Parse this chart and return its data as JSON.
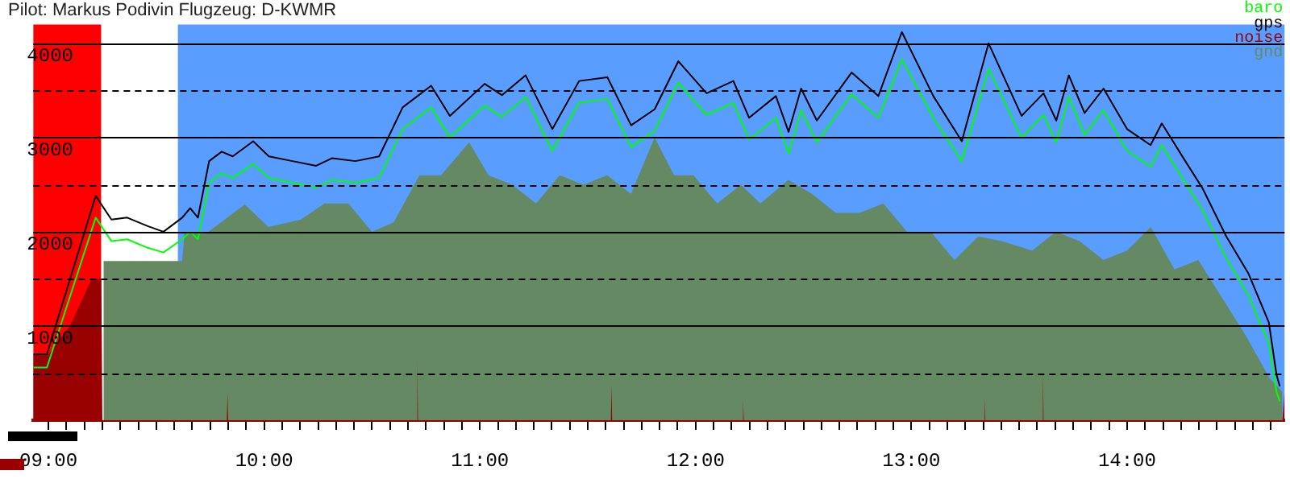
{
  "chart_data": {
    "type": "line",
    "title": "Pilot: Markus Podivin Flugzeug: D-KWMR",
    "xlim": [
      8.93,
      14.73
    ],
    "ylim": [
      0,
      4200
    ],
    "xticks": [
      {
        "value": 9,
        "label": "09:00"
      },
      {
        "value": 9.0833,
        "label": null
      },
      {
        "value": 9.1667,
        "label": null
      },
      {
        "value": 9.25,
        "label": null
      },
      {
        "value": 9.3333,
        "label": null
      },
      {
        "value": 9.4167,
        "label": null
      },
      {
        "value": 9.5,
        "label": null
      },
      {
        "value": 9.5833,
        "label": null
      },
      {
        "value": 9.6667,
        "label": null
      },
      {
        "value": 9.75,
        "label": null
      },
      {
        "value": 9.8333,
        "label": null
      },
      {
        "value": 9.9167,
        "label": null
      },
      {
        "value": 10,
        "label": "10:00"
      },
      {
        "value": 10.0833,
        "label": null
      },
      {
        "value": 10.1667,
        "label": null
      },
      {
        "value": 10.25,
        "label": null
      },
      {
        "value": 10.3333,
        "label": null
      },
      {
        "value": 10.4167,
        "label": null
      },
      {
        "value": 10.5,
        "label": null
      },
      {
        "value": 10.5833,
        "label": null
      },
      {
        "value": 10.6667,
        "label": null
      },
      {
        "value": 10.75,
        "label": null
      },
      {
        "value": 10.8333,
        "label": null
      },
      {
        "value": 10.9167,
        "label": null
      },
      {
        "value": 11,
        "label": "11:00"
      },
      {
        "value": 11.0833,
        "label": null
      },
      {
        "value": 11.1667,
        "label": null
      },
      {
        "value": 11.25,
        "label": null
      },
      {
        "value": 11.3333,
        "label": null
      },
      {
        "value": 11.4167,
        "label": null
      },
      {
        "value": 11.5,
        "label": null
      },
      {
        "value": 11.5833,
        "label": null
      },
      {
        "value": 11.6667,
        "label": null
      },
      {
        "value": 11.75,
        "label": null
      },
      {
        "value": 11.8333,
        "label": null
      },
      {
        "value": 11.9167,
        "label": null
      },
      {
        "value": 12,
        "label": "12:00"
      },
      {
        "value": 12.0833,
        "label": null
      },
      {
        "value": 12.1667,
        "label": null
      },
      {
        "value": 12.25,
        "label": null
      },
      {
        "value": 12.3333,
        "label": null
      },
      {
        "value": 12.4167,
        "label": null
      },
      {
        "value": 12.5,
        "label": null
      },
      {
        "value": 12.5833,
        "label": null
      },
      {
        "value": 12.6667,
        "label": null
      },
      {
        "value": 12.75,
        "label": null
      },
      {
        "value": 12.8333,
        "label": null
      },
      {
        "value": 12.9167,
        "label": null
      },
      {
        "value": 13,
        "label": "13:00"
      },
      {
        "value": 13.0833,
        "label": null
      },
      {
        "value": 13.1667,
        "label": null
      },
      {
        "value": 13.25,
        "label": null
      },
      {
        "value": 13.3333,
        "label": null
      },
      {
        "value": 13.4167,
        "label": null
      },
      {
        "value": 13.5,
        "label": null
      },
      {
        "value": 13.5833,
        "label": null
      },
      {
        "value": 13.6667,
        "label": null
      },
      {
        "value": 13.75,
        "label": null
      },
      {
        "value": 13.8333,
        "label": null
      },
      {
        "value": 13.9167,
        "label": null
      },
      {
        "value": 14,
        "label": "14:00"
      },
      {
        "value": 14.0833,
        "label": null
      },
      {
        "value": 14.1667,
        "label": null
      },
      {
        "value": 14.25,
        "label": null
      },
      {
        "value": 14.3333,
        "label": null
      },
      {
        "value": 14.4167,
        "label": null
      },
      {
        "value": 14.5,
        "label": null
      },
      {
        "value": 14.5833,
        "label": null
      },
      {
        "value": 14.6667,
        "label": null
      }
    ],
    "yticks": [
      {
        "value": 500,
        "label": null
      },
      1000,
      {
        "value": 1500,
        "label": null
      },
      2000,
      {
        "value": 2500,
        "label": null
      },
      3000,
      {
        "value": 3500,
        "label": null
      },
      4000
    ],
    "grid": "y",
    "legend": "top right",
    "bands": [
      {
        "axis": "x",
        "from": 8.93,
        "to": 9.245,
        "color": "#ff0000"
      },
      {
        "axis": "x",
        "from": 9.245,
        "to": 9.6,
        "color": "#ffffff"
      },
      {
        "axis": "x",
        "from": 9.6,
        "to": 14.73,
        "color": "#589dff"
      }
    ],
    "series": [
      {
        "name": "baro",
        "color": "#00ff00",
        "x": [
          8.93,
          8.993,
          9.219,
          9.292,
          9.365,
          9.46,
          9.533,
          9.62,
          9.657,
          9.693,
          9.745,
          9.803,
          9.854,
          9.949,
          10.022,
          10.131,
          10.241,
          10.314,
          10.423,
          10.533,
          10.642,
          10.774,
          10.861,
          11.022,
          11.102,
          11.212,
          11.336,
          11.46,
          11.591,
          11.701,
          11.81,
          11.92,
          12.051,
          12.175,
          12.248,
          12.372,
          12.431,
          12.489,
          12.562,
          12.723,
          12.847,
          12.956,
          13.102,
          13.234,
          13.358,
          13.511,
          13.613,
          13.672,
          13.73,
          13.803,
          13.891,
          14.0,
          14.109,
          14.161,
          14.27,
          14.35,
          14.46,
          14.562,
          14.657,
          14.693,
          14.708
        ],
        "values": [
          560,
          560,
          2150,
          1900,
          1920,
          1830,
          1780,
          1920,
          2000,
          1920,
          2520,
          2620,
          2570,
          2720,
          2570,
          2520,
          2470,
          2550,
          2520,
          2570,
          3090,
          3320,
          3000,
          3340,
          3220,
          3430,
          2860,
          3370,
          3410,
          2900,
          3070,
          3580,
          3240,
          3370,
          2980,
          3210,
          2830,
          3290,
          2950,
          3460,
          3210,
          3830,
          3210,
          2750,
          3730,
          3000,
          3240,
          2950,
          3430,
          3030,
          3290,
          2860,
          2690,
          2920,
          2520,
          2230,
          1720,
          1330,
          820,
          300,
          200
        ]
      },
      {
        "name": "gps",
        "color": "#000000",
        "x": [
          8.93,
          8.993,
          9.219,
          9.292,
          9.365,
          9.46,
          9.533,
          9.62,
          9.657,
          9.693,
          9.745,
          9.803,
          9.854,
          9.949,
          10.022,
          10.131,
          10.241,
          10.314,
          10.423,
          10.533,
          10.642,
          10.774,
          10.861,
          11.022,
          11.102,
          11.212,
          11.336,
          11.46,
          11.591,
          11.701,
          11.81,
          11.92,
          12.051,
          12.175,
          12.248,
          12.372,
          12.431,
          12.489,
          12.562,
          12.723,
          12.847,
          12.956,
          13.102,
          13.234,
          13.358,
          13.511,
          13.613,
          13.672,
          13.73,
          13.803,
          13.891,
          14.0,
          14.109,
          14.161,
          14.27,
          14.35,
          14.46,
          14.562,
          14.657,
          14.693,
          14.708
        ],
        "values": [
          700,
          700,
          2380,
          2130,
          2150,
          2060,
          2000,
          2150,
          2250,
          2150,
          2750,
          2850,
          2800,
          2960,
          2800,
          2750,
          2700,
          2780,
          2750,
          2800,
          3320,
          3550,
          3230,
          3570,
          3450,
          3660,
          3090,
          3600,
          3640,
          3130,
          3300,
          3810,
          3470,
          3600,
          3210,
          3440,
          3060,
          3520,
          3180,
          3690,
          3440,
          4120,
          3440,
          2960,
          4000,
          3230,
          3470,
          3180,
          3660,
          3260,
          3520,
          3090,
          2920,
          3150,
          2750,
          2460,
          1950,
          1560,
          1040,
          480,
          360
        ]
      },
      {
        "name": "noise",
        "type": "area",
        "color": "#990000",
        "x": [
          8.93,
          9.0,
          9.1,
          9.2,
          9.245,
          9.25,
          9.827,
          9.83,
          9.833,
          10.707,
          10.71,
          10.713,
          11.607,
          11.61,
          11.613,
          12.217,
          12.22,
          12.223,
          13.337,
          13.34,
          13.343,
          13.607,
          13.61,
          13.613,
          14.72,
          14.73
        ],
        "values": [
          700,
          700,
          1000,
          1500,
          1500,
          0,
          0,
          290,
          0,
          0,
          620,
          0,
          0,
          360,
          0,
          0,
          220,
          0,
          0,
          250,
          0,
          0,
          530,
          0,
          0,
          300
        ]
      },
      {
        "name": "gnd",
        "type": "area",
        "color": "#658a63",
        "x": [
          9.255,
          9.62,
          9.63,
          9.73,
          9.91,
          10.02,
          10.17,
          10.28,
          10.39,
          10.5,
          10.6,
          10.72,
          10.82,
          10.95,
          11.04,
          11.15,
          11.26,
          11.37,
          11.48,
          11.59,
          11.7,
          11.81,
          11.9,
          11.99,
          12.1,
          12.21,
          12.3,
          12.43,
          12.54,
          12.65,
          12.76,
          12.87,
          12.98,
          13.09,
          13.2,
          13.31,
          13.42,
          13.56,
          13.67,
          13.78,
          13.89,
          14.0,
          14.11,
          14.22,
          14.33,
          14.44,
          14.55,
          14.66,
          14.72
        ],
        "values": [
          1690,
          1690,
          1980,
          1980,
          2290,
          2050,
          2130,
          2300,
          2300,
          2000,
          2100,
          2600,
          2600,
          2950,
          2600,
          2500,
          2300,
          2600,
          2500,
          2600,
          2400,
          3000,
          2600,
          2600,
          2300,
          2500,
          2300,
          2550,
          2400,
          2200,
          2200,
          2300,
          2000,
          2000,
          1700,
          1950,
          1900,
          1800,
          2000,
          1900,
          1700,
          1800,
          2050,
          1600,
          1700,
          1300,
          900,
          450,
          300
        ]
      }
    ]
  }
}
